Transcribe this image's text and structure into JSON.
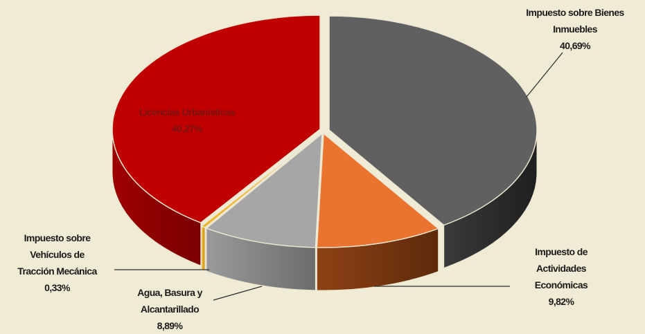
{
  "chart_data": {
    "type": "pie",
    "title": "",
    "slices": [
      {
        "label_lines": [
          "Impuesto sobre Bienes",
          "Inmuebles"
        ],
        "value": 40.69,
        "value_label": "40,69%",
        "color": "#606060"
      },
      {
        "label_lines": [
          "Impuesto de",
          "Actividades",
          "Económicas"
        ],
        "value": 9.82,
        "value_label": "9,82%",
        "color": "#ea7330"
      },
      {
        "label_lines": [
          "Agua, Basura y",
          "Alcantarillado"
        ],
        "value": 8.89,
        "value_label": "8,89%",
        "color": "#a6a6a6"
      },
      {
        "label_lines": [
          "Impuesto sobre",
          "Vehículos de",
          "Tracción Mecánica"
        ],
        "value": 0.33,
        "value_label": "0,33%",
        "color": "#f0b323"
      },
      {
        "label_lines": [
          "Licencias Urbanísticas"
        ],
        "value": 40.27,
        "value_label": "40,27%",
        "color": "#c00000"
      }
    ],
    "legend": "none",
    "style": "3d-exploded"
  }
}
